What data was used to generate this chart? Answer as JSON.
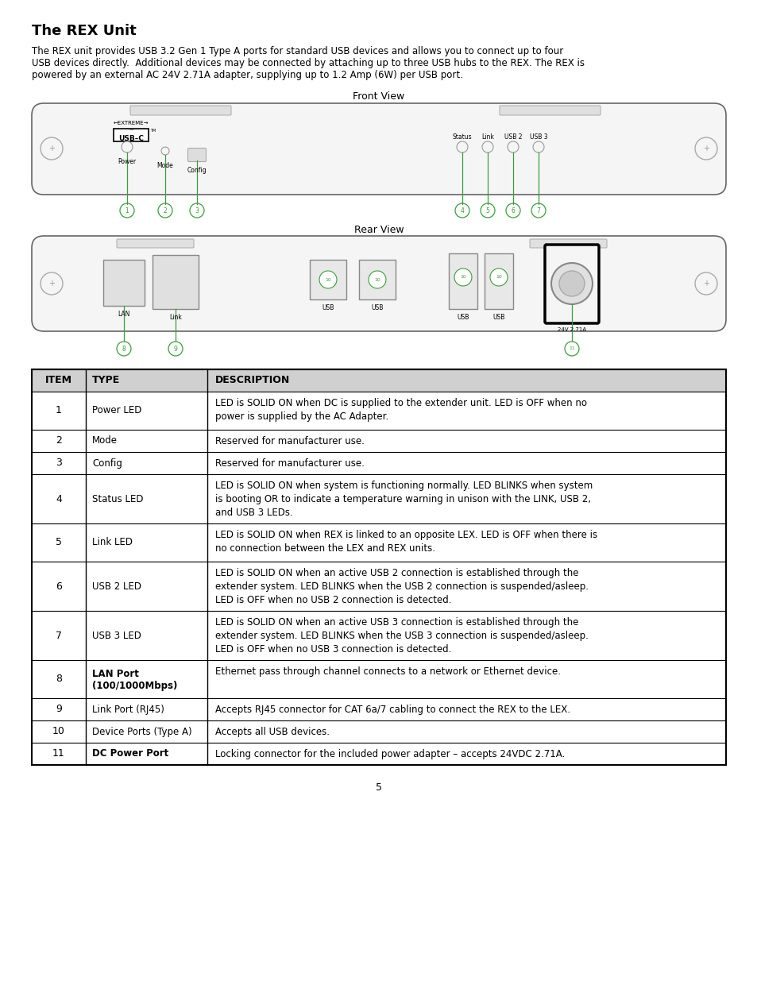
{
  "title": "The REX Unit",
  "body_text_1": "The REX unit provides USB 3.2 Gen 1 Type A ports for standard USB devices and allows you to connect up to four",
  "body_text_2": "USB devices directly.  Additional devices may be connected by attaching up to three USB hubs to the REX. The REX is",
  "body_text_3": "powered by an external AC 24V 2.71A adapter, supplying up to 1.2 Amp (6W) per USB port.",
  "front_view_label": "Front View",
  "rear_view_label": "Rear View",
  "green_color": "#3a9e3a",
  "table_header": [
    "ITEM",
    "TYPE",
    "DESCRIPTION"
  ],
  "table_rows": [
    [
      "1",
      "Power LED",
      "LED is SOLID ON when DC is supplied to the extender unit. LED is OFF when no\npower is supplied by the AC Adapter."
    ],
    [
      "2",
      "Mode",
      "Reserved for manufacturer use."
    ],
    [
      "3",
      "Config",
      "Reserved for manufacturer use."
    ],
    [
      "4",
      "Status LED",
      "LED is SOLID ON when system is functioning normally. LED BLINKS when system\nis booting OR to indicate a temperature warning in unison with the LINK, USB 2,\nand USB 3 LEDs."
    ],
    [
      "5",
      "Link LED",
      "LED is SOLID ON when REX is linked to an opposite LEX. LED is OFF when there is\nno connection between the LEX and REX units."
    ],
    [
      "6",
      "USB 2 LED",
      "LED is SOLID ON when an active USB 2 connection is established through the\nextender system. LED BLINKS when the USB 2 connection is suspended/asleep.\nLED is OFF when no USB 2 connection is detected."
    ],
    [
      "7",
      "USB 3 LED",
      "LED is SOLID ON when an active USB 3 connection is established through the\nextender system. LED BLINKS when the USB 3 connection is suspended/asleep.\nLED is OFF when no USB 3 connection is detected."
    ],
    [
      "8",
      "LAN Port\n(100/1000Mbps)",
      "Ethernet pass through channel connects to a network or Ethernet device."
    ],
    [
      "9",
      "Link Port (RJ45)",
      "Accepts RJ45 connector for CAT 6a/7 cabling to connect the REX to the LEX."
    ],
    [
      "10",
      "Device Ports (Type A)",
      "Accepts all USB devices."
    ],
    [
      "11",
      "DC Power Port",
      "Locking connector for the included power adapter – accepts 24VDC 2.71A."
    ]
  ],
  "row4_bold_prefix": "LED is SOLID ON when system is functioning normally. LED BLINKS when system\nis booting ",
  "row4_bold": "OR",
  "row4_suffix": " to indicate a temperature warning in unison with the LINK, USB 2,\nand USB 3 LEDs.",
  "page_number": "5",
  "background_color": "#ffffff",
  "text_color": "#000000",
  "table_header_bg": "#d0d0d0",
  "device_bg": "#f5f5f5",
  "device_edge": "#888888",
  "slot_bg": "#e0e0e0"
}
